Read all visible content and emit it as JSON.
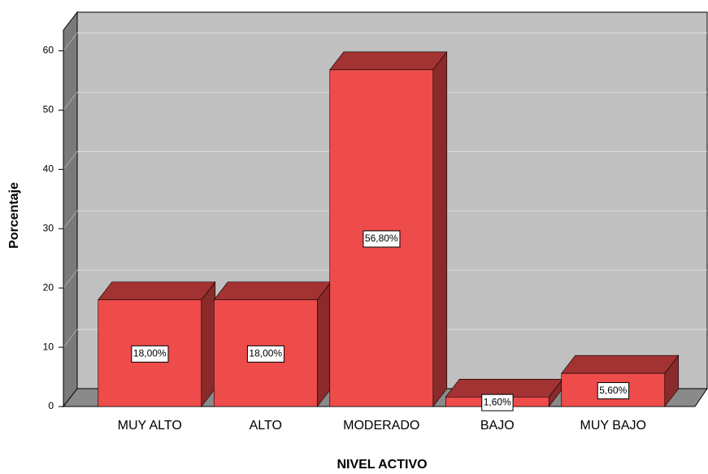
{
  "chart_data": {
    "type": "bar3d",
    "categories": [
      "MUY ALTO",
      "ALTO",
      "MODERADO",
      "BAJO",
      "MUY BAJO"
    ],
    "values": [
      18,
      18,
      56.8,
      1.6,
      5.6
    ],
    "value_labels": [
      "18,00%",
      "18,00%",
      "56,80%",
      "1,60%",
      "5,60%"
    ],
    "color": "#ee4b4b",
    "xlabel": "NIVEL ACTIVO",
    "ylabel": "Porcentaje",
    "ylim": [
      0,
      63.5
    ],
    "yticks": [
      0,
      10,
      20,
      30,
      40,
      50,
      60
    ],
    "grid": true
  }
}
